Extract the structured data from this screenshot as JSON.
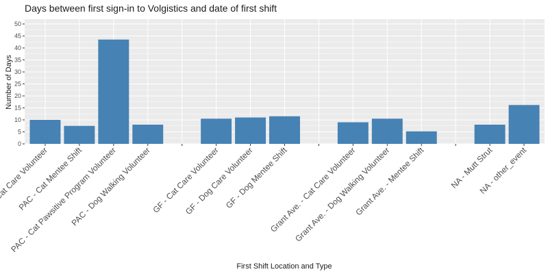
{
  "chart_data": {
    "type": "bar",
    "title": "Days between first sign-in to Volgistics and date of first shift",
    "xlabel": "First Shift Location and Type",
    "ylabel": "Number of Days",
    "ylim": [
      0,
      52
    ],
    "yticks": [
      0,
      5,
      10,
      15,
      20,
      25,
      30,
      35,
      40,
      45,
      50
    ],
    "grid": true,
    "bar_color": "#4682B4",
    "panel_color": "#EBEBEB",
    "categories": [
      "PAC - Cat Care Volunteer",
      "PAC - Cat Mentee Shift",
      "PAC - Cat Pawsitive Program Volunteer",
      "PAC - Dog Walking Volunteer",
      "",
      "GF - Cat Care Volunteer",
      "GF - Dog Care Volunteer",
      "GF - Dog Mentee Shift",
      "",
      "Grant Ave. - Cat Care Volunteer",
      "Grant Ave. - Dog Walking Volunteer",
      "Grant Ave. - Mentee Shift",
      "",
      "NA - Mutt Strut",
      "NA - other_event"
    ],
    "values": [
      10,
      7.5,
      43.5,
      8,
      null,
      10.5,
      11,
      11.5,
      null,
      9,
      10.5,
      5.2,
      null,
      8,
      16.2
    ]
  }
}
